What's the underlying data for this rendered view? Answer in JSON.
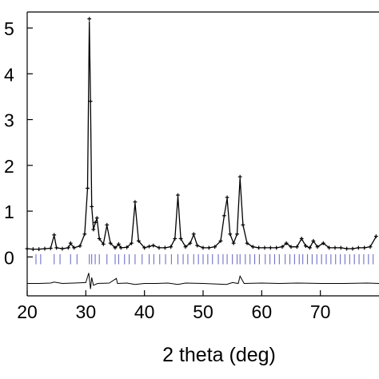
{
  "chart_data": {
    "type": "line",
    "title": "",
    "xlabel": "2 theta (deg)",
    "ylabel": "",
    "xlim": [
      20,
      80
    ],
    "ylim": [
      -0.85,
      5.35
    ],
    "x_ticks": [
      20,
      30,
      40,
      50,
      60,
      70
    ],
    "y_ticks": [
      0,
      1,
      2,
      3,
      4,
      5
    ],
    "grid": false,
    "legend": "none",
    "colors": {
      "observed": "#000000",
      "calculated": "#000000",
      "difference": "#000000",
      "reflection_ticks": "#6f6fc8"
    },
    "series": [
      {
        "role": "observed",
        "style": "crosses",
        "x": [
          20.0,
          21.0,
          22.0,
          23.0,
          24.0,
          24.6,
          25.0,
          26.0,
          27.0,
          27.4,
          28.0,
          29.0,
          29.8,
          30.3,
          30.6,
          30.8,
          31.0,
          31.3,
          31.6,
          31.9,
          32.3,
          33.0,
          33.6,
          34.2,
          35.0,
          35.6,
          36.0,
          37.0,
          37.8,
          38.4,
          39.0,
          40.0,
          40.8,
          41.5,
          42.5,
          43.5,
          44.5,
          45.2,
          45.7,
          46.2,
          47.0,
          47.8,
          48.4,
          49.0,
          50.0,
          51.0,
          52.0,
          53.0,
          53.6,
          54.1,
          54.6,
          55.2,
          55.8,
          56.3,
          56.8,
          57.5,
          58.5,
          59.5,
          60.5,
          61.5,
          62.5,
          63.5,
          64.2,
          65.0,
          66.0,
          66.8,
          67.5,
          68.2,
          68.8,
          69.5,
          70.5,
          71.5,
          72.5,
          73.5,
          74.5,
          75.5,
          76.5,
          77.5,
          78.5,
          79.5
        ],
        "y": [
          0.18,
          0.17,
          0.17,
          0.18,
          0.19,
          0.48,
          0.2,
          0.18,
          0.2,
          0.3,
          0.2,
          0.24,
          0.5,
          1.5,
          5.2,
          3.4,
          1.1,
          0.6,
          0.75,
          0.85,
          0.4,
          0.28,
          0.7,
          0.3,
          0.2,
          0.28,
          0.2,
          0.21,
          0.3,
          1.2,
          0.35,
          0.2,
          0.23,
          0.25,
          0.2,
          0.2,
          0.22,
          0.4,
          1.35,
          0.4,
          0.22,
          0.3,
          0.5,
          0.25,
          0.2,
          0.2,
          0.22,
          0.35,
          0.9,
          1.3,
          0.5,
          0.3,
          0.5,
          1.75,
          0.7,
          0.3,
          0.22,
          0.2,
          0.2,
          0.2,
          0.2,
          0.22,
          0.3,
          0.22,
          0.22,
          0.4,
          0.24,
          0.2,
          0.35,
          0.22,
          0.3,
          0.2,
          0.2,
          0.2,
          0.18,
          0.18,
          0.2,
          0.2,
          0.22,
          0.45
        ]
      },
      {
        "role": "calculated",
        "style": "line",
        "x": [
          20.0,
          21.0,
          22.0,
          23.0,
          24.0,
          24.6,
          25.0,
          26.0,
          27.0,
          27.4,
          28.0,
          29.0,
          29.8,
          30.3,
          30.6,
          30.8,
          31.0,
          31.3,
          31.6,
          31.9,
          32.3,
          33.0,
          33.6,
          34.2,
          35.0,
          35.6,
          36.0,
          37.0,
          37.8,
          38.4,
          39.0,
          40.0,
          40.8,
          41.5,
          42.5,
          43.5,
          44.5,
          45.2,
          45.7,
          46.2,
          47.0,
          47.8,
          48.4,
          49.0,
          50.0,
          51.0,
          52.0,
          53.0,
          53.6,
          54.1,
          54.6,
          55.2,
          55.8,
          56.3,
          56.8,
          57.5,
          58.5,
          59.5,
          60.5,
          61.5,
          62.5,
          63.5,
          64.2,
          65.0,
          66.0,
          66.8,
          67.5,
          68.2,
          68.8,
          69.5,
          70.5,
          71.5,
          72.5,
          73.5,
          74.5,
          75.5,
          76.5,
          77.5,
          78.5,
          79.5
        ],
        "y": [
          0.18,
          0.17,
          0.17,
          0.18,
          0.19,
          0.47,
          0.2,
          0.18,
          0.2,
          0.29,
          0.2,
          0.24,
          0.5,
          1.5,
          5.15,
          3.4,
          1.1,
          0.6,
          0.74,
          0.84,
          0.4,
          0.28,
          0.69,
          0.3,
          0.2,
          0.27,
          0.2,
          0.21,
          0.3,
          1.18,
          0.35,
          0.2,
          0.23,
          0.25,
          0.2,
          0.2,
          0.22,
          0.4,
          1.33,
          0.4,
          0.22,
          0.3,
          0.49,
          0.25,
          0.2,
          0.2,
          0.22,
          0.35,
          0.9,
          1.28,
          0.5,
          0.3,
          0.5,
          1.72,
          0.7,
          0.3,
          0.22,
          0.2,
          0.2,
          0.2,
          0.2,
          0.22,
          0.3,
          0.22,
          0.22,
          0.4,
          0.24,
          0.2,
          0.35,
          0.22,
          0.3,
          0.2,
          0.2,
          0.2,
          0.18,
          0.18,
          0.2,
          0.2,
          0.22,
          0.44
        ]
      },
      {
        "role": "difference",
        "style": "line",
        "x": [
          20.0,
          22.0,
          24.0,
          24.6,
          26.0,
          28.0,
          30.0,
          30.5,
          30.8,
          31.0,
          31.3,
          32.0,
          34.0,
          35.2,
          35.4,
          37.0,
          38.4,
          40.0,
          42.0,
          44.0,
          45.7,
          47.0,
          50.0,
          54.0,
          55.0,
          56.0,
          56.3,
          57.0,
          60.0,
          63.0,
          66.0,
          70.0,
          74.0,
          78.0,
          80.0
        ],
        "y": [
          -0.58,
          -0.58,
          -0.57,
          -0.55,
          -0.58,
          -0.57,
          -0.56,
          -0.35,
          -0.7,
          -0.45,
          -0.62,
          -0.58,
          -0.57,
          -0.47,
          -0.58,
          -0.57,
          -0.6,
          -0.58,
          -0.58,
          -0.57,
          -0.6,
          -0.57,
          -0.58,
          -0.6,
          -0.56,
          -0.58,
          -0.42,
          -0.58,
          -0.57,
          -0.58,
          -0.57,
          -0.58,
          -0.58,
          -0.57,
          -0.58
        ]
      }
    ],
    "reflection_ticks": [
      21.5,
      22.3,
      24.6,
      25.6,
      27.4,
      28.5,
      30.6,
      31.0,
      31.6,
      32.3,
      33.6,
      35.0,
      35.6,
      36.6,
      37.4,
      38.4,
      39.6,
      40.8,
      41.6,
      42.6,
      43.6,
      44.6,
      45.7,
      46.6,
      47.4,
      48.4,
      49.2,
      50.0,
      50.8,
      51.6,
      52.6,
      53.4,
      54.1,
      55.0,
      55.8,
      56.3,
      57.2,
      58.0,
      58.8,
      59.6,
      60.6,
      61.4,
      62.2,
      63.0,
      64.0,
      64.8,
      65.6,
      66.4,
      67.0,
      67.8,
      68.6,
      69.4,
      70.2,
      71.0,
      71.8,
      72.6,
      73.4,
      74.2,
      75.0,
      75.8,
      76.6,
      77.4,
      78.2,
      79.0
    ]
  }
}
